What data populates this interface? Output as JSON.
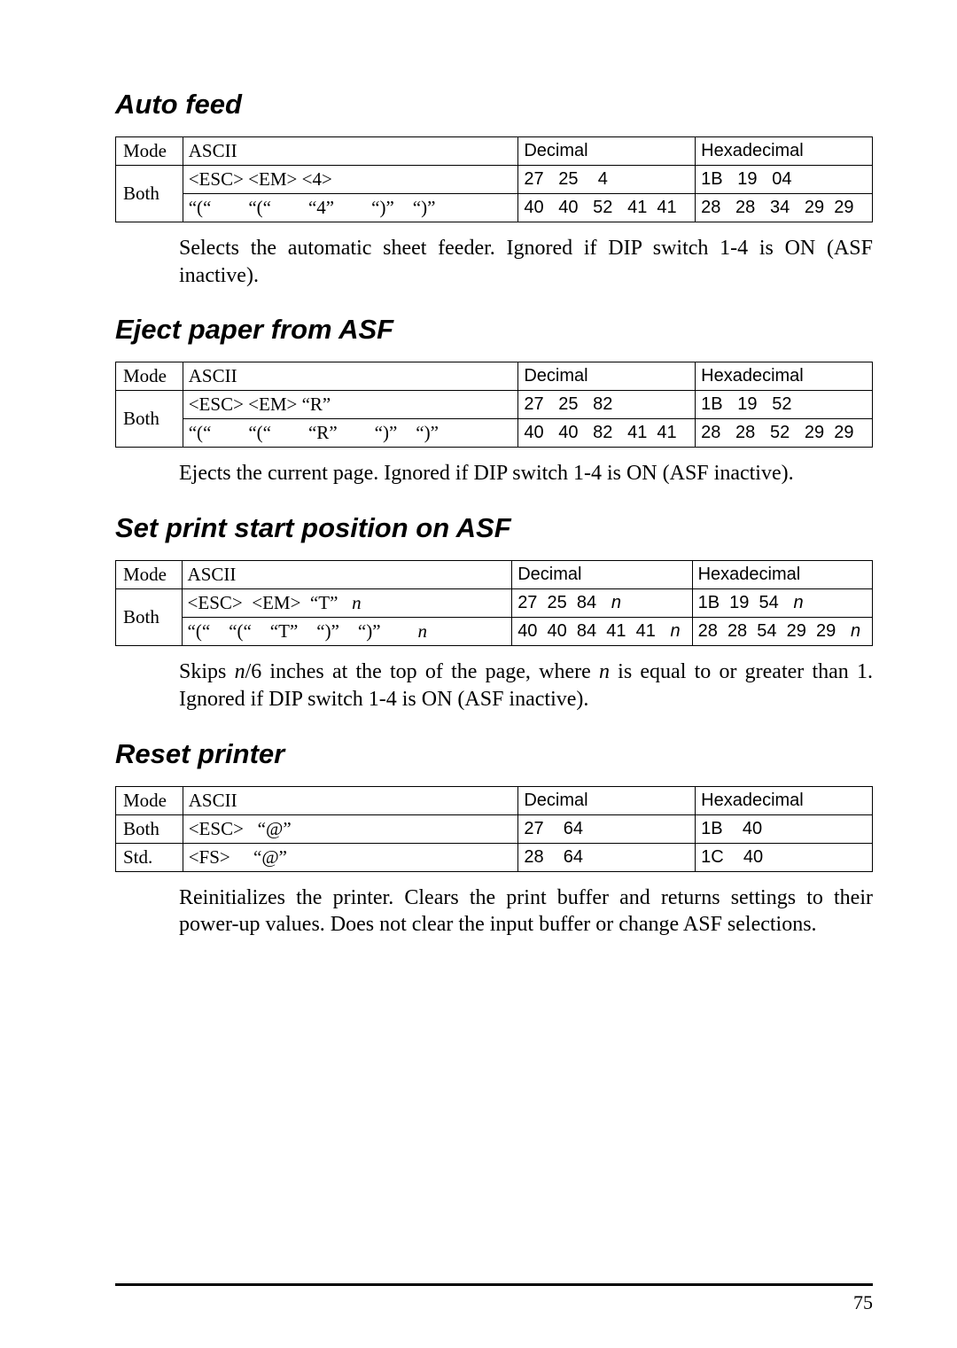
{
  "page_number": "75",
  "sections": [
    {
      "heading": "Auto feed",
      "table": {
        "headers": [
          "Mode",
          "ASCII",
          "Decimal",
          "Hexadecimal"
        ],
        "mode": "Both",
        "rows": [
          {
            "ascii": "<ESC> <EM> <4>",
            "dec": "27   25    4",
            "hex": "1B   19   04"
          },
          {
            "ascii": "“(“  “(“  “4”  “)” “)”",
            "dec": "40   40   52   41  41",
            "hex": "28   28   34   29  29"
          }
        ]
      },
      "body": "Selects the automatic sheet feeder. Ignored if DIP switch 1-4 is ON (ASF inactive)."
    },
    {
      "heading": "Eject paper from ASF",
      "table": {
        "headers": [
          "Mode",
          "ASCII",
          "Decimal",
          "Hexadecimal"
        ],
        "mode": "Both",
        "rows": [
          {
            "ascii": "<ESC> <EM> “R”",
            "dec": "27   25   82",
            "hex": "1B   19   52"
          },
          {
            "ascii": "“(“  “(“  “R”  “)” “)”",
            "dec": "40   40   82   41  41",
            "hex": "28   28   52   29  29"
          }
        ]
      },
      "body": "Ejects the current page. Ignored if DIP switch 1-4 is ON (ASF inactive)."
    },
    {
      "heading": "Set print start position on ASF",
      "table": {
        "headers": [
          "Mode",
          "ASCII",
          "Decimal",
          "Hexadecimal"
        ],
        "mode": "Both",
        "rows": [
          {
            "ascii_html": "&lt;ESC&gt;  &lt;EM&gt;  “T”   <span class=\"italic-n\">n</span>",
            "dec_html": "27  25  84   <span class=\"italic-n\">n</span>",
            "hex_html": "1B  19  54   <span class=\"italic-n\">n</span>"
          },
          {
            "ascii_html": "“(“ “(“ “T” “)” “)”  <span class=\"italic-n\">n</span>",
            "dec_html": "40  40  84  41  41   <span class=\"italic-n\">n</span>",
            "hex_html": "28  28  54  29  29   <span class=\"italic-n\">n</span>"
          }
        ]
      },
      "body_html": "Skips <span class=\"italic-n\">n</span>/6 inches at the top of the page, where <span class=\"italic-n\">n</span> is equal to or greater than 1. Ignored if DIP switch 1-4 is ON (ASF inactive)."
    },
    {
      "heading": "Reset printer",
      "table_simple": {
        "headers": [
          "Mode",
          "ASCII",
          "Decimal",
          "Hexadecimal"
        ],
        "rows": [
          {
            "mode": "Both",
            "ascii": "<ESC>   “@”",
            "dec": "27    64",
            "hex": "1B    40"
          },
          {
            "mode": "Std.",
            "ascii": "<FS>     “@”",
            "dec": "28    64",
            "hex": "1C    40"
          }
        ]
      },
      "body": "Reinitializes the printer. Clears the print buffer and returns settings to their power-up values. Does not clear the input buffer or change ASF selections."
    }
  ]
}
